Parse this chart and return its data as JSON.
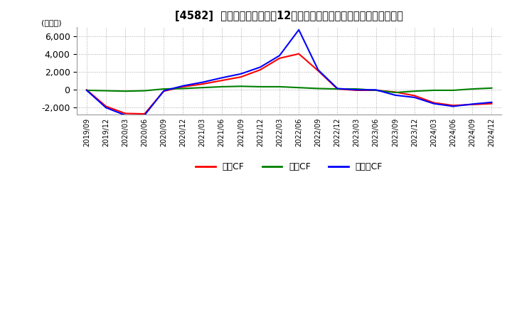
{
  "title": "[4582]  キャッシュフローの12か月移動合計の対前年同期増減額の推移",
  "ylabel": "(百万円)",
  "ylim": [
    -2800,
    7000
  ],
  "yticks": [
    -2000,
    0,
    2000,
    4000,
    6000
  ],
  "background_color": "#ffffff",
  "grid_color": "#aaaaaa",
  "legend_labels": [
    "営業CF",
    "投資CF",
    "フリーCF"
  ],
  "legend_colors": [
    "#ff0000",
    "#008000",
    "#0000ff"
  ],
  "x_labels": [
    "2019/09",
    "2019/12",
    "2020/03",
    "2020/06",
    "2020/09",
    "2020/12",
    "2021/03",
    "2021/06",
    "2021/09",
    "2021/12",
    "2022/03",
    "2022/06",
    "2022/09",
    "2022/12",
    "2023/03",
    "2023/06",
    "2023/09",
    "2023/12",
    "2024/03",
    "2024/06",
    "2024/09",
    "2024/12"
  ],
  "operating_cf": [
    -50,
    -1900,
    -2700,
    -2750,
    -200,
    300,
    600,
    1000,
    1400,
    2200,
    3500,
    4000,
    2100,
    50,
    -100,
    -100,
    -300,
    -700,
    -1500,
    -1800,
    -1700,
    -1600
  ],
  "investing_cf": [
    -100,
    -150,
    -200,
    -150,
    50,
    100,
    200,
    300,
    350,
    300,
    300,
    200,
    100,
    50,
    50,
    -100,
    -350,
    -200,
    -100,
    -100,
    50,
    150
  ],
  "free_cf": [
    -100,
    -2050,
    -2900,
    -2900,
    -150,
    400,
    800,
    1300,
    1750,
    2500,
    3800,
    6700,
    2200,
    100,
    -50,
    -50,
    -650,
    -900,
    -1600,
    -1900,
    -1650,
    -1450
  ]
}
